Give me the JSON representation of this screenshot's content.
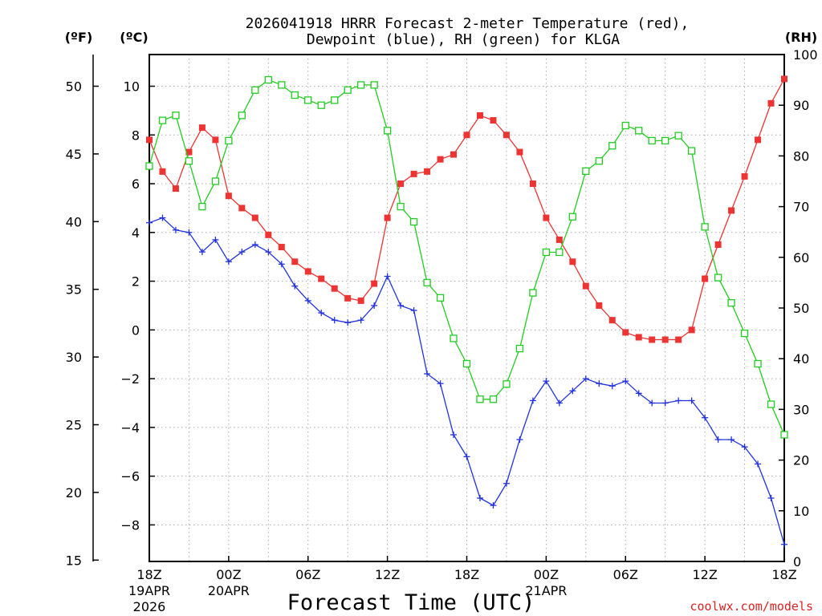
{
  "chart_data": {
    "type": "line",
    "title_line1": "2026041918 HRRR Forecast 2-meter Temperature (red),",
    "title_line2": "Dewpoint (blue), RH (green) for KLGA",
    "xlabel": "Forecast Time (UTC)",
    "credit": "coolwx.com/models",
    "unit_f": "(ºF)",
    "unit_c": "(ºC)",
    "unit_rh": "(RH)",
    "x_range": [
      0,
      48
    ],
    "x_ticks": [
      {
        "hour": 0,
        "label": "18Z",
        "sub1": "19APR",
        "sub2": "2026"
      },
      {
        "hour": 6,
        "label": "00Z",
        "sub1": "20APR",
        "sub2": ""
      },
      {
        "hour": 12,
        "label": "06Z",
        "sub1": "",
        "sub2": ""
      },
      {
        "hour": 18,
        "label": "12Z",
        "sub1": "",
        "sub2": ""
      },
      {
        "hour": 24,
        "label": "18Z",
        "sub1": "",
        "sub2": ""
      },
      {
        "hour": 30,
        "label": "00Z",
        "sub1": "21APR",
        "sub2": ""
      },
      {
        "hour": 36,
        "label": "06Z",
        "sub1": "",
        "sub2": ""
      },
      {
        "hour": 42,
        "label": "12Z",
        "sub1": "",
        "sub2": ""
      },
      {
        "hour": 48,
        "label": "18Z",
        "sub1": "",
        "sub2": ""
      }
    ],
    "c_range": [
      -9.5,
      11.3
    ],
    "c_ticks": [
      -8,
      -6,
      -4,
      -2,
      0,
      2,
      4,
      6,
      8,
      10
    ],
    "c_tick_labels": [
      "−8",
      "−6",
      "−4",
      "−2",
      "0",
      "2",
      "4",
      "6",
      "8",
      "10"
    ],
    "f_ticks": [
      15,
      20,
      25,
      30,
      35,
      40,
      45,
      50
    ],
    "f_tick_labels": [
      "15",
      "20",
      "25",
      "30",
      "35",
      "40",
      "45",
      "50"
    ],
    "rh_range": [
      0,
      100
    ],
    "rh_ticks": [
      0,
      10,
      20,
      30,
      40,
      50,
      60,
      70,
      80,
      90,
      100
    ],
    "rh_tick_labels": [
      "0",
      "10",
      "20",
      "30",
      "40",
      "50",
      "60",
      "70",
      "80",
      "90",
      "100"
    ],
    "colors": {
      "temperature": "#ee3333",
      "dewpoint": "#2233dd",
      "rh": "#22cc22",
      "grid": "#aaaaaa",
      "credit": "#dd2222"
    },
    "series": [
      {
        "name": "Temperature (C)",
        "axis": "c",
        "marker": "filled-square",
        "values": [
          7.8,
          6.5,
          5.8,
          7.3,
          8.3,
          7.8,
          5.5,
          5.0,
          4.6,
          3.9,
          3.4,
          2.8,
          2.4,
          2.1,
          1.7,
          1.3,
          1.2,
          1.9,
          4.6,
          6.0,
          6.4,
          6.5,
          7.0,
          7.2,
          8.0,
          8.8,
          8.6,
          8.0,
          7.3,
          6.0,
          4.6,
          3.7,
          2.8,
          1.8,
          1.0,
          0.4,
          -0.1,
          -0.3,
          -0.4,
          -0.4,
          -0.4,
          0.0,
          2.1,
          3.5,
          4.9,
          6.3,
          7.8,
          9.3,
          10.3
        ]
      },
      {
        "name": "Dewpoint (C)",
        "axis": "c",
        "marker": "plus",
        "values": [
          4.4,
          4.6,
          4.1,
          4.0,
          3.2,
          3.7,
          2.8,
          3.2,
          3.5,
          3.2,
          2.7,
          1.8,
          1.2,
          0.7,
          0.4,
          0.3,
          0.4,
          1.0,
          2.2,
          1.0,
          0.8,
          -1.8,
          -2.2,
          -4.3,
          -5.2,
          -6.9,
          -7.2,
          -6.3,
          -4.5,
          -2.9,
          -2.1,
          -3.0,
          -2.5,
          -2.0,
          -2.2,
          -2.3,
          -2.1,
          -2.6,
          -3.0,
          -3.0,
          -2.9,
          -2.9,
          -3.6,
          -4.5,
          -4.5,
          -4.8,
          -5.5,
          -6.9,
          -8.8
        ]
      },
      {
        "name": "RH (%)",
        "axis": "rh",
        "marker": "open-square",
        "values": [
          78,
          87,
          88,
          79,
          70,
          75,
          83,
          88,
          93,
          95,
          94,
          92,
          91,
          90,
          91,
          93,
          94,
          94,
          85,
          70,
          67,
          55,
          52,
          44,
          39,
          32,
          32,
          35,
          42,
          53,
          61,
          61,
          68,
          77,
          79,
          82,
          86,
          85,
          83,
          83,
          84,
          81,
          66,
          56,
          51,
          45,
          39,
          31,
          25
        ]
      }
    ]
  }
}
